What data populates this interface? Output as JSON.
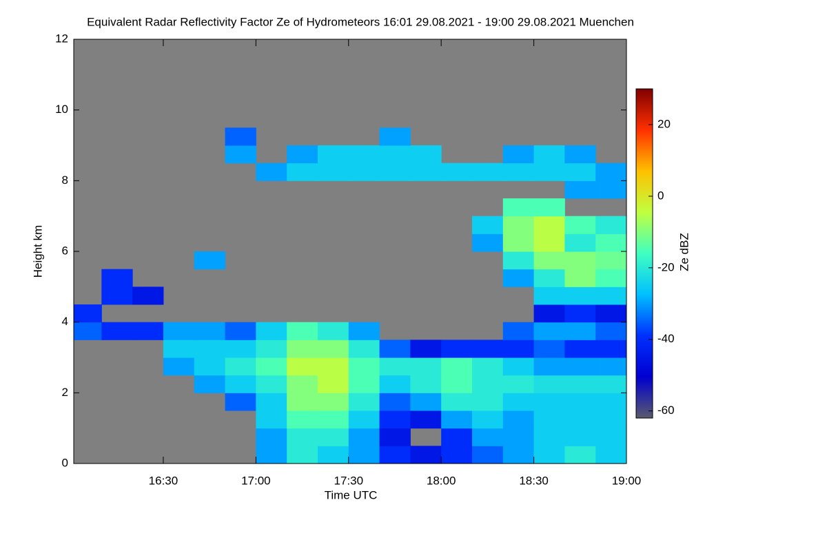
{
  "chart_data": {
    "type": "heatmap",
    "title": "Equivalent Radar Reflectivity Factor Ze of Hydrometeors   16:01 29.08.2021 - 19:00 29.08.2021 Muenchen",
    "xlabel": "Time UTC",
    "ylabel": "Height km",
    "colorbar_label": "Ze dBZ",
    "xlim": [
      961,
      1140
    ],
    "xticks": [
      {
        "value": 990,
        "label": "16:30"
      },
      {
        "value": 1020,
        "label": "17:00"
      },
      {
        "value": 1050,
        "label": "17:30"
      },
      {
        "value": 1080,
        "label": "18:00"
      },
      {
        "value": 1110,
        "label": "18:30"
      },
      {
        "value": 1140,
        "label": "19:00"
      }
    ],
    "ylim": [
      0,
      12
    ],
    "yticks": [
      0,
      2,
      4,
      6,
      8,
      10,
      12
    ],
    "clim": [
      -62,
      30
    ],
    "cticks": [
      -60,
      -40,
      -20,
      0,
      20
    ],
    "colormap": [
      "#5a5a6e",
      "#0000d0",
      "#0030ff",
      "#00c0ff",
      "#40ffc0",
      "#c0ff40",
      "#ffc000",
      "#ff3000",
      "#800000"
    ],
    "missing_color": "#808080",
    "x_edges": [
      961,
      970,
      980,
      990,
      1000,
      1010,
      1020,
      1030,
      1040,
      1050,
      1060,
      1070,
      1080,
      1090,
      1100,
      1110,
      1120,
      1130,
      1140
    ],
    "y_edges": [
      0,
      0.5,
      1,
      1.5,
      2,
      2.5,
      3,
      3.5,
      4,
      4.5,
      5,
      5.5,
      6,
      6.5,
      7,
      7.5,
      8,
      8.5,
      9,
      9.5
    ],
    "z": [
      [
        null,
        null,
        null,
        null,
        null,
        null,
        -30,
        -20,
        -25,
        -30,
        -40,
        -45,
        -40,
        -35,
        -30,
        -25,
        -20,
        -25
      ],
      [
        null,
        null,
        null,
        null,
        null,
        null,
        -30,
        -20,
        -20,
        -30,
        -45,
        null,
        -40,
        -30,
        -30,
        -25,
        -25,
        -25
      ],
      [
        null,
        null,
        null,
        null,
        null,
        null,
        -25,
        -15,
        -15,
        -25,
        -40,
        -45,
        -30,
        -25,
        -30,
        -25,
        -25,
        -25
      ],
      [
        null,
        null,
        null,
        null,
        null,
        -35,
        -25,
        -10,
        -10,
        -20,
        -35,
        -30,
        -20,
        -20,
        -25,
        -25,
        -25,
        -25
      ],
      [
        null,
        null,
        null,
        null,
        -30,
        -25,
        -20,
        -10,
        -5,
        -15,
        -25,
        -20,
        -15,
        -20,
        -20,
        -22,
        -22,
        -22
      ],
      [
        null,
        null,
        null,
        -30,
        -25,
        -20,
        -15,
        -5,
        -5,
        -15,
        -20,
        -20,
        -15,
        -20,
        -25,
        -30,
        -30,
        -30
      ],
      [
        null,
        null,
        null,
        -25,
        -25,
        -25,
        -20,
        -10,
        -10,
        -20,
        -35,
        -45,
        -40,
        -40,
        -40,
        -35,
        -40,
        -40
      ],
      [
        -35,
        -40,
        -40,
        -30,
        -30,
        -35,
        -25,
        -15,
        -20,
        -30,
        null,
        null,
        null,
        null,
        -35,
        -30,
        -30,
        -35
      ],
      [
        -40,
        null,
        null,
        null,
        null,
        null,
        null,
        null,
        null,
        null,
        null,
        null,
        null,
        null,
        null,
        -45,
        -40,
        -45
      ],
      [
        null,
        -40,
        -45,
        null,
        null,
        null,
        null,
        null,
        null,
        null,
        null,
        null,
        null,
        null,
        null,
        -25,
        -25,
        -25
      ],
      [
        null,
        -40,
        null,
        null,
        null,
        null,
        null,
        null,
        null,
        null,
        null,
        null,
        null,
        null,
        -30,
        -20,
        -10,
        -15
      ],
      [
        null,
        null,
        null,
        null,
        -30,
        null,
        null,
        null,
        null,
        null,
        null,
        null,
        null,
        null,
        -20,
        -10,
        -10,
        -12
      ],
      [
        null,
        null,
        null,
        null,
        null,
        null,
        null,
        null,
        null,
        null,
        null,
        null,
        null,
        -30,
        -10,
        -5,
        -20,
        -15
      ],
      [
        null,
        null,
        null,
        null,
        null,
        null,
        null,
        null,
        null,
        null,
        null,
        null,
        null,
        -25,
        -10,
        -5,
        -15,
        -20
      ],
      [
        null,
        null,
        null,
        null,
        null,
        null,
        null,
        null,
        null,
        null,
        null,
        null,
        null,
        null,
        -15,
        -15,
        null,
        null
      ],
      [
        null,
        null,
        null,
        null,
        null,
        null,
        null,
        null,
        null,
        null,
        null,
        null,
        null,
        null,
        null,
        null,
        -30,
        -30
      ],
      [
        null,
        null,
        null,
        null,
        null,
        null,
        -30,
        -25,
        -25,
        -25,
        -25,
        -25,
        -25,
        -25,
        -25,
        -25,
        -25,
        -30
      ],
      [
        null,
        null,
        null,
        null,
        null,
        -30,
        null,
        -30,
        -25,
        -25,
        -25,
        -25,
        null,
        null,
        -30,
        -25,
        -30,
        null
      ],
      [
        null,
        null,
        null,
        null,
        null,
        -35,
        null,
        null,
        null,
        null,
        -30,
        null,
        null,
        null,
        null,
        null,
        null,
        null
      ]
    ]
  }
}
